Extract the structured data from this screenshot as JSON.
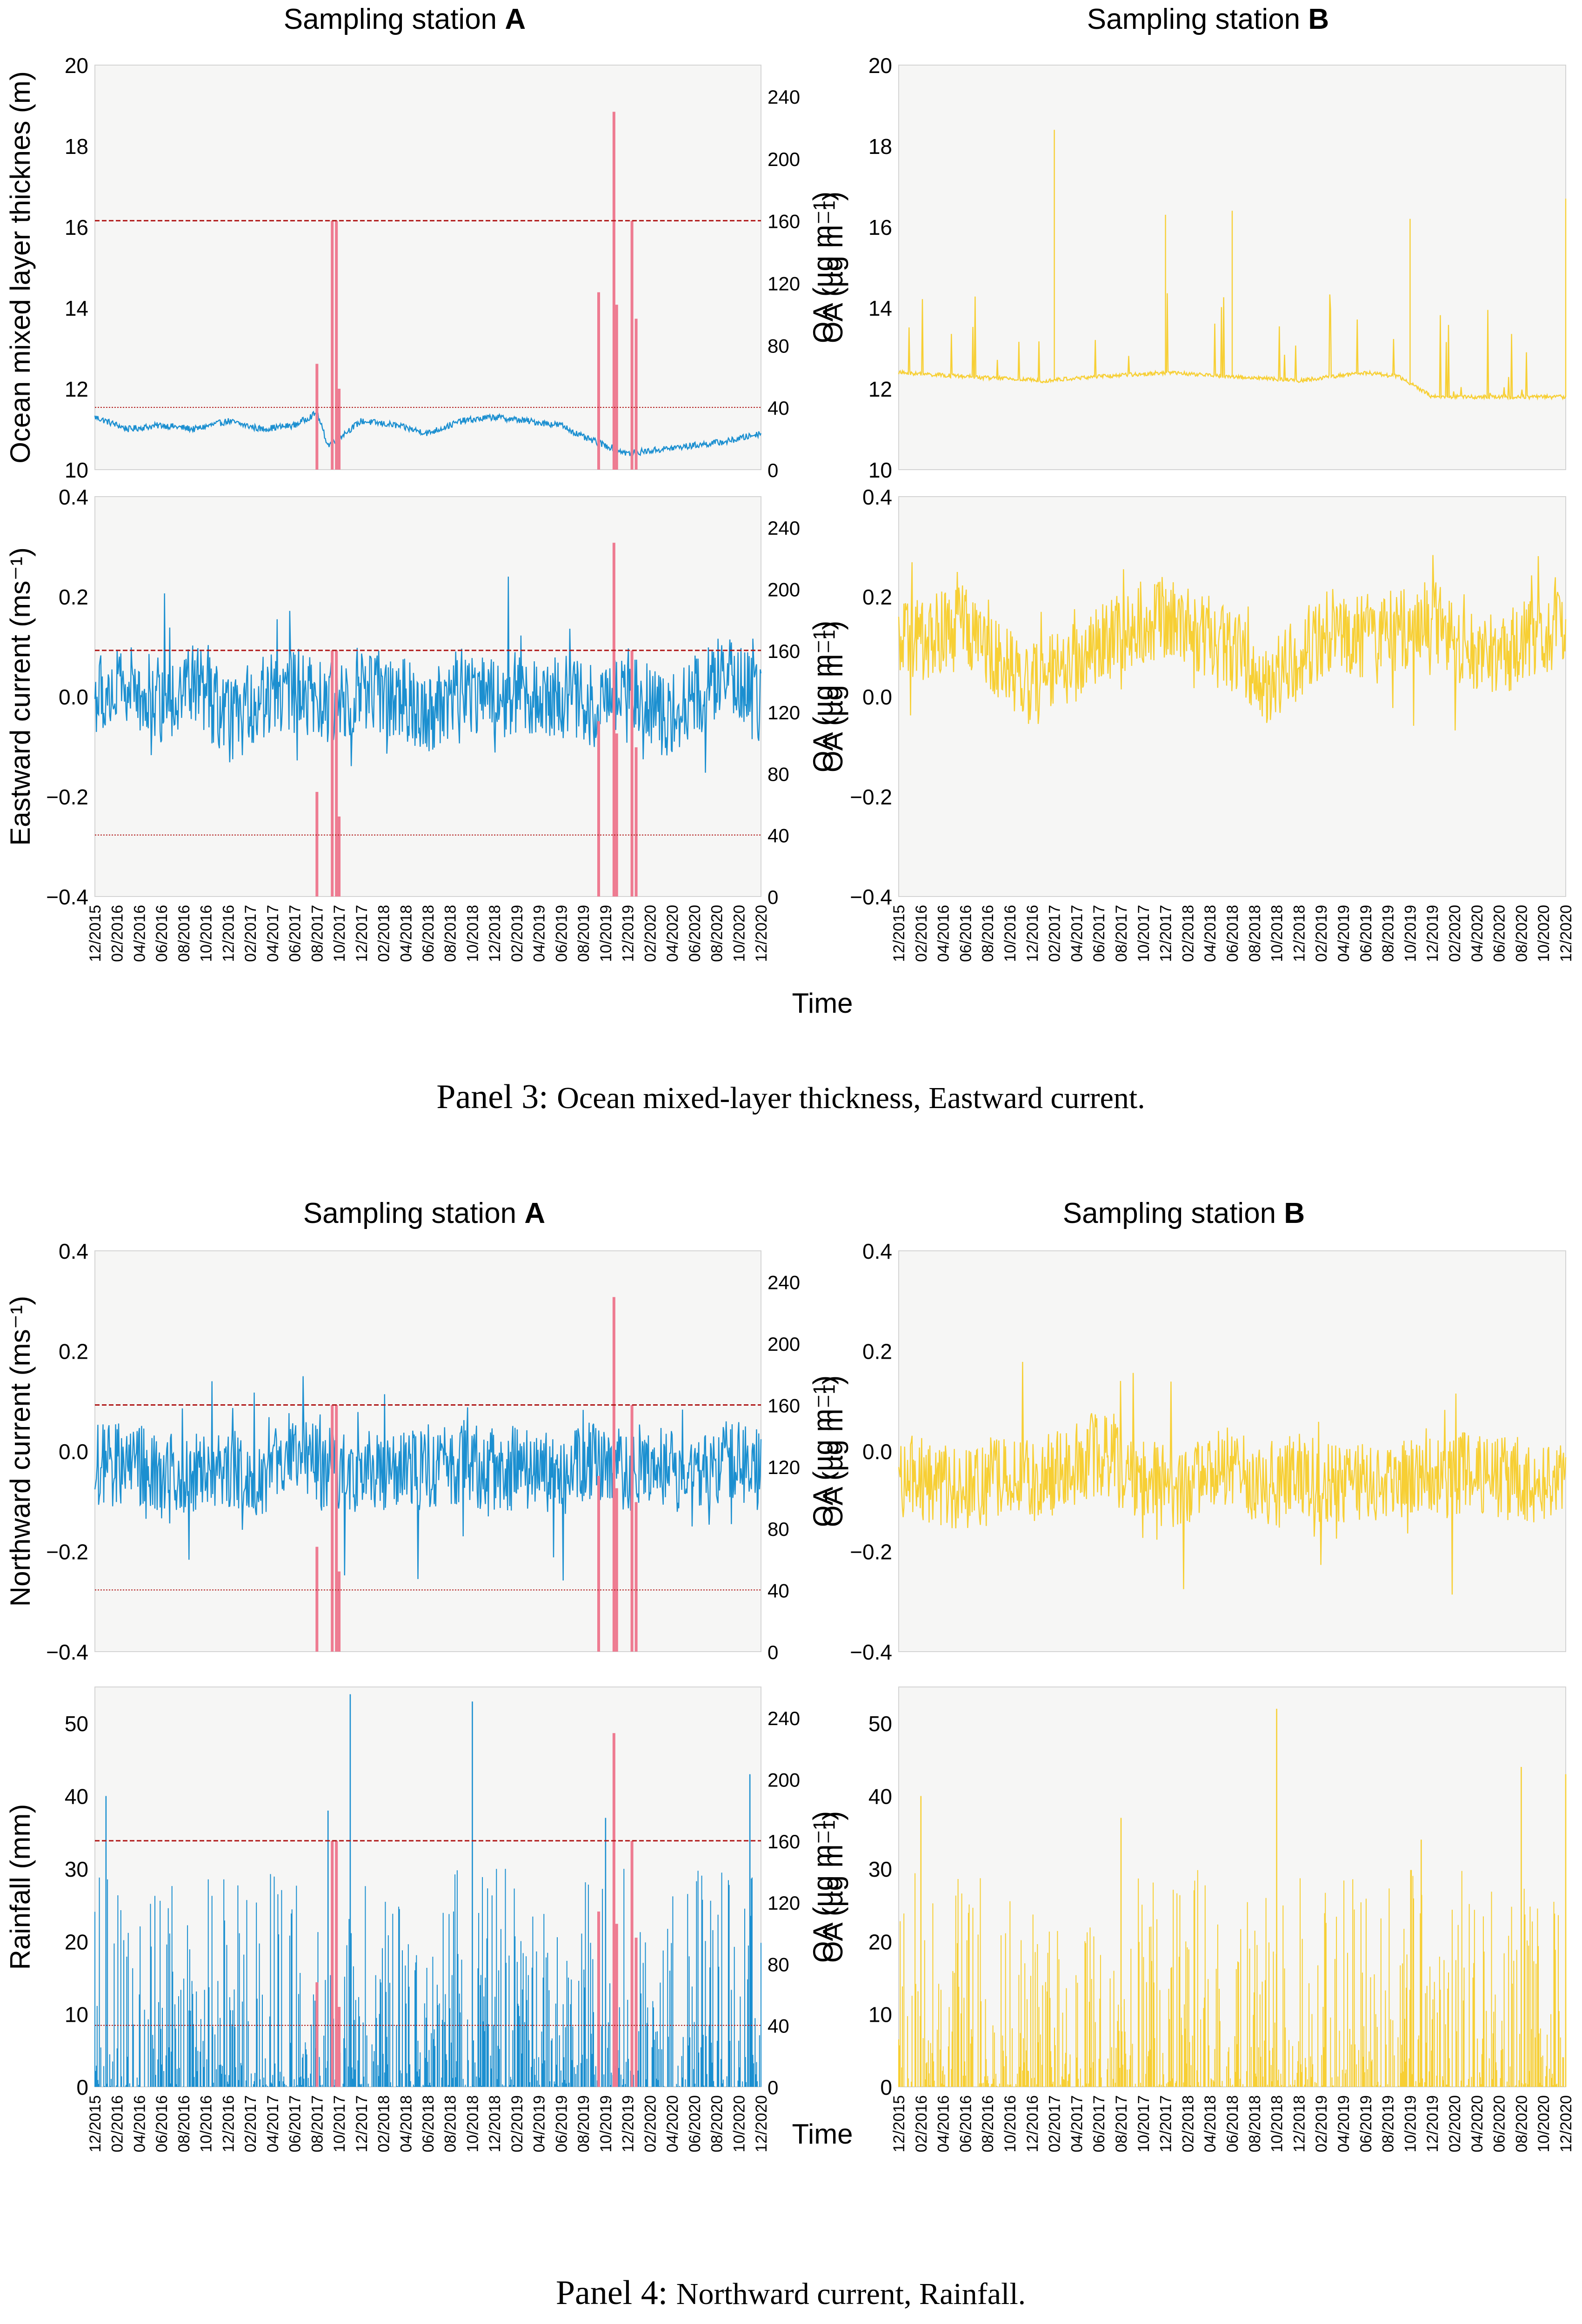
{
  "colors": {
    "station_a_line": "#1b8fd0",
    "station_b_line": "#f7cf34",
    "oa_bar": "#ee7b91",
    "threshold_line": "#b01818",
    "plot_bg": "#f6f6f5"
  },
  "x_axis": {
    "label": "Time",
    "ticks": [
      "12/2015",
      "02/2016",
      "04/2016",
      "06/2016",
      "08/2016",
      "10/2016",
      "12/2016",
      "02/2017",
      "04/2017",
      "06/2017",
      "08/2017",
      "10/2017",
      "12/2017",
      "02/2018",
      "04/2018",
      "06/2018",
      "08/2018",
      "10/2018",
      "12/2018",
      "02/2019",
      "04/2019",
      "06/2019",
      "08/2019",
      "10/2019",
      "12/2019",
      "02/2020",
      "04/2020",
      "06/2020",
      "08/2020",
      "10/2020",
      "12/2020"
    ]
  },
  "oa_axis": {
    "label": "OA (µg m⁻¹)",
    "ticks": [
      "0",
      "40",
      "80",
      "120",
      "160",
      "200",
      "240"
    ],
    "ylim": [
      0,
      260
    ]
  },
  "panels": [
    {
      "caption_prefix": "Panel 3:",
      "caption_text": "Ocean mixed-layer thickness, Eastward current.",
      "station_a_title_prefix": "Sampling station ",
      "station_a_title_bold": "A",
      "station_b_title_prefix": "Sampling station ",
      "station_b_title_bold": "B",
      "x_label": "Time"
    },
    {
      "caption_prefix": "Panel 4:",
      "caption_text": "Northward current, Rainfall.",
      "station_a_title_prefix": "Sampling station ",
      "station_a_title_bold": "A",
      "station_b_title_prefix": "Sampling station ",
      "station_b_title_bold": "B",
      "x_label": "Time"
    }
  ],
  "chart_data": [
    {
      "id": "mixed_layer_A",
      "type": "line",
      "station": "A",
      "ylabel": "Ocean mixed layer thicknes (m)",
      "ylim": [
        10,
        20
      ],
      "yticks": [
        "10",
        "12",
        "14",
        "16",
        "18",
        "20"
      ],
      "xlim": [
        "12/2015",
        "12/2020"
      ],
      "series": [
        {
          "name": "Ocean mixed layer thickness",
          "x": [
            "12/2015",
            "03/2016",
            "06/2016",
            "09/2016",
            "12/2016",
            "03/2017",
            "06/2017",
            "08/2017",
            "09/2017",
            "12/2017",
            "03/2018",
            "06/2018",
            "09/2018",
            "12/2018",
            "03/2019",
            "06/2019",
            "08/2019",
            "10/2019",
            "12/2019",
            "03/2020",
            "06/2020",
            "09/2020",
            "12/2020"
          ],
          "values": [
            11.3,
            11.0,
            11.1,
            11.0,
            11.2,
            11.0,
            11.1,
            11.4,
            10.6,
            11.2,
            11.1,
            10.9,
            11.2,
            11.3,
            11.2,
            11.1,
            10.8,
            10.6,
            10.4,
            10.5,
            10.6,
            10.7,
            10.9
          ]
        }
      ],
      "oa_bars": [
        {
          "date": "08/2017",
          "value": 68
        },
        {
          "date": "09/2017",
          "value": 160
        },
        {
          "date": "09/2017",
          "value": 160
        },
        {
          "date": "10/2017",
          "value": 52
        },
        {
          "date": "09/2019",
          "value": 114
        },
        {
          "date": "10/2019",
          "value": 230
        },
        {
          "date": "11/2019",
          "value": 106
        },
        {
          "date": "12/2019",
          "value": 160
        },
        {
          "date": "12/2019",
          "value": 97
        }
      ],
      "oa_thresholds": [
        {
          "value": 160,
          "style": "dashed"
        },
        {
          "value": 40,
          "style": "dotted"
        }
      ]
    },
    {
      "id": "mixed_layer_B",
      "type": "line",
      "station": "B",
      "ylim": [
        10,
        20
      ],
      "yticks": [
        "10",
        "12",
        "14",
        "16",
        "18",
        "20"
      ],
      "series": [
        {
          "name": "Ocean mixed layer thickness",
          "x": [
            "12/2015",
            "06/2016",
            "01/2017",
            "06/2017",
            "12/2017",
            "06/2018",
            "12/2018",
            "06/2019",
            "09/2019",
            "12/2019",
            "06/2020",
            "12/2020"
          ],
          "values": [
            12.4,
            12.3,
            12.2,
            12.3,
            12.4,
            12.3,
            12.2,
            12.4,
            12.3,
            11.8,
            11.8,
            11.8
          ],
          "peaks": [
            {
              "date": "02/2017",
              "value": 18.4
            },
            {
              "date": "12/2017",
              "value": 16.3
            },
            {
              "date": "06/2018",
              "value": 16.4
            },
            {
              "date": "10/2019",
              "value": 16.2
            },
            {
              "date": "12/2020",
              "value": 16.7
            }
          ]
        }
      ]
    },
    {
      "id": "eastward_A",
      "type": "line",
      "station": "A",
      "ylabel": "Eastward current (ms⁻¹)",
      "ylim": [
        -0.4,
        0.4
      ],
      "yticks": [
        "0.4",
        "0.2",
        "0.0",
        "-0.2",
        "-0.4"
      ],
      "series": [
        {
          "name": "Eastward current",
          "x": [
            "12/2015",
            "03/2016",
            "06/2016",
            "09/2016",
            "12/2016",
            "03/2017",
            "06/2017",
            "09/2017",
            "12/2017",
            "03/2018",
            "06/2018",
            "09/2018",
            "12/2018",
            "03/2019",
            "06/2019",
            "09/2019",
            "12/2019",
            "03/2020",
            "06/2020",
            "09/2020",
            "12/2020"
          ],
          "values": [
            0.0,
            0.02,
            -0.01,
            0.03,
            -0.05,
            0.0,
            0.01,
            -0.02,
            0.02,
            0.0,
            -0.03,
            0.02,
            0.0,
            0.01,
            0.0,
            -0.02,
            0.03,
            -0.04,
            0.0,
            0.05,
            -0.02
          ]
        }
      ],
      "oa_bars": [
        {
          "date": "08/2017",
          "value": 68
        },
        {
          "date": "09/2017",
          "value": 160
        },
        {
          "date": "09/2017",
          "value": 160
        },
        {
          "date": "10/2017",
          "value": 52
        },
        {
          "date": "09/2019",
          "value": 114
        },
        {
          "date": "10/2019",
          "value": 230
        },
        {
          "date": "11/2019",
          "value": 106
        },
        {
          "date": "12/2019",
          "value": 160
        },
        {
          "date": "12/2019",
          "value": 97
        }
      ],
      "oa_thresholds": [
        {
          "value": 160,
          "style": "dashed"
        },
        {
          "value": 40,
          "style": "dotted"
        }
      ]
    },
    {
      "id": "eastward_B",
      "type": "line",
      "station": "B",
      "ylim": [
        -0.4,
        0.4
      ],
      "yticks": [
        "0.4",
        "0.2",
        "0.0",
        "-0.2",
        "-0.4"
      ],
      "series": [
        {
          "name": "Eastward current",
          "x": [
            "12/2015",
            "03/2016",
            "06/2016",
            "09/2016",
            "12/2016",
            "03/2017",
            "06/2017",
            "09/2017",
            "12/2017",
            "03/2018",
            "06/2018",
            "09/2018",
            "12/2018",
            "03/2019",
            "06/2019",
            "09/2019",
            "12/2019",
            "03/2020",
            "06/2020",
            "09/2020",
            "12/2020"
          ],
          "values": [
            0.1,
            0.12,
            0.14,
            0.08,
            0.02,
            0.06,
            0.1,
            0.14,
            0.16,
            0.13,
            0.1,
            0.02,
            0.08,
            0.14,
            0.12,
            0.13,
            0.15,
            0.1,
            0.08,
            0.12,
            0.14
          ]
        }
      ]
    },
    {
      "id": "northward_A",
      "type": "line",
      "station": "A",
      "ylabel": "Northward current (ms⁻¹)",
      "ylim": [
        -0.4,
        0.4
      ],
      "yticks": [
        "0.4",
        "0.2",
        "0.0",
        "-0.2",
        "-0.4"
      ],
      "series": [
        {
          "name": "Northward current",
          "x": [
            "12/2015",
            "03/2016",
            "06/2016",
            "09/2016",
            "12/2016",
            "03/2017",
            "06/2017",
            "09/2017",
            "12/2017",
            "03/2018",
            "06/2018",
            "09/2018",
            "12/2018",
            "03/2019",
            "06/2019",
            "09/2019",
            "12/2019",
            "03/2020",
            "06/2020",
            "09/2020",
            "12/2020"
          ],
          "values": [
            -0.03,
            -0.02,
            -0.05,
            -0.04,
            -0.03,
            -0.05,
            -0.02,
            -0.03,
            -0.04,
            -0.05,
            -0.03,
            -0.02,
            -0.04,
            -0.03,
            -0.05,
            -0.02,
            -0.04,
            -0.03,
            -0.05,
            -0.02,
            -0.04
          ]
        }
      ],
      "oa_bars": [
        {
          "date": "08/2017",
          "value": 68
        },
        {
          "date": "09/2017",
          "value": 160
        },
        {
          "date": "09/2017",
          "value": 160
        },
        {
          "date": "10/2017",
          "value": 52
        },
        {
          "date": "09/2019",
          "value": 114
        },
        {
          "date": "10/2019",
          "value": 230
        },
        {
          "date": "11/2019",
          "value": 106
        },
        {
          "date": "12/2019",
          "value": 160
        },
        {
          "date": "12/2019",
          "value": 97
        }
      ],
      "oa_thresholds": [
        {
          "value": 160,
          "style": "dashed"
        },
        {
          "value": 40,
          "style": "dotted"
        }
      ]
    },
    {
      "id": "northward_B",
      "type": "line",
      "station": "B",
      "ylim": [
        -0.4,
        0.4
      ],
      "yticks": [
        "0.4",
        "0.2",
        "0.0",
        "-0.2",
        "-0.4"
      ],
      "series": [
        {
          "name": "Northward current",
          "x": [
            "12/2015",
            "03/2016",
            "06/2016",
            "09/2016",
            "12/2016",
            "03/2017",
            "06/2017",
            "09/2017",
            "12/2017",
            "03/2018",
            "06/2018",
            "09/2018",
            "12/2018",
            "03/2019",
            "06/2019",
            "09/2019",
            "12/2019",
            "03/2020",
            "06/2020",
            "09/2020",
            "12/2020"
          ],
          "values": [
            -0.05,
            -0.06,
            -0.08,
            -0.05,
            -0.06,
            -0.04,
            0.0,
            -0.05,
            -0.07,
            -0.06,
            -0.03,
            -0.08,
            -0.05,
            -0.06,
            -0.07,
            -0.05,
            -0.06,
            -0.04,
            -0.05,
            -0.06,
            -0.07
          ]
        }
      ]
    },
    {
      "id": "rainfall_A",
      "type": "bar",
      "station": "A",
      "ylabel": "Rainfall (mm)",
      "ylim": [
        0,
        55
      ],
      "yticks": [
        "0",
        "10",
        "20",
        "30",
        "40",
        "50"
      ],
      "series": [
        {
          "name": "Rainfall",
          "peaks": [
            {
              "date": "01/2016",
              "value": 40
            },
            {
              "date": "09/2017",
              "value": 38
            },
            {
              "date": "11/2017",
              "value": 54
            },
            {
              "date": "10/2018",
              "value": 53
            },
            {
              "date": "10/2019",
              "value": 37
            },
            {
              "date": "11/2020",
              "value": 43
            }
          ]
        }
      ],
      "oa_bars": [
        {
          "date": "08/2017",
          "value": 68
        },
        {
          "date": "09/2017",
          "value": 160
        },
        {
          "date": "09/2017",
          "value": 160
        },
        {
          "date": "10/2017",
          "value": 52
        },
        {
          "date": "09/2019",
          "value": 114
        },
        {
          "date": "10/2019",
          "value": 230
        },
        {
          "date": "11/2019",
          "value": 106
        },
        {
          "date": "12/2019",
          "value": 160
        },
        {
          "date": "12/2019",
          "value": 97
        }
      ],
      "oa_thresholds": [
        {
          "value": 160,
          "style": "dashed"
        },
        {
          "value": 40,
          "style": "dotted"
        }
      ]
    },
    {
      "id": "rainfall_B",
      "type": "bar",
      "station": "B",
      "ylim": [
        0,
        55
      ],
      "yticks": [
        "0",
        "10",
        "20",
        "30",
        "40",
        "50"
      ],
      "series": [
        {
          "name": "Rainfall",
          "peaks": [
            {
              "date": "02/2016",
              "value": 40
            },
            {
              "date": "08/2017",
              "value": 37
            },
            {
              "date": "10/2018",
              "value": 52
            },
            {
              "date": "11/2019",
              "value": 34
            },
            {
              "date": "08/2020",
              "value": 44
            },
            {
              "date": "12/2020",
              "value": 43
            }
          ]
        }
      ]
    }
  ]
}
